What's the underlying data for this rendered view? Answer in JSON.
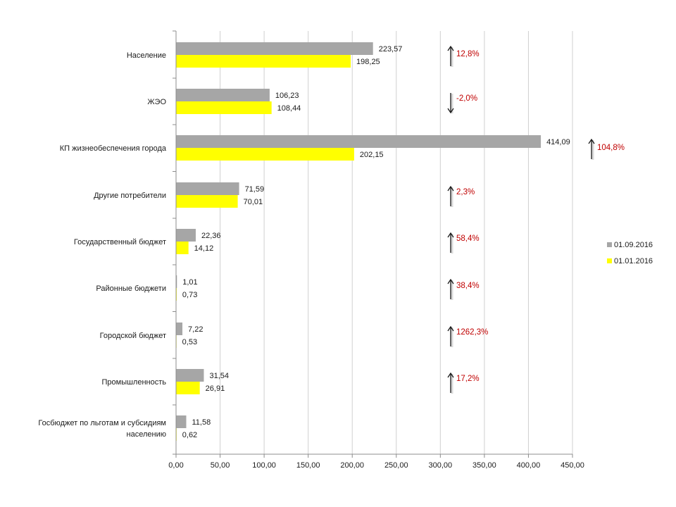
{
  "chart_data": {
    "type": "bar",
    "orientation": "horizontal",
    "categories": [
      "Население",
      "ЖЭО",
      "КП жизнеобеспечения  города",
      "Другие потребители",
      "Государственный бюджет",
      "Районные бюджети",
      "Городской бюджет",
      "Промышленность",
      "Госбюджет по льготам и субсидиям населению"
    ],
    "category_label_lines": [
      [
        "Население"
      ],
      [
        "ЖЭО"
      ],
      [
        "КП жизнеобеспечения  города"
      ],
      [
        "Другие потребители"
      ],
      [
        "Государственный бюджет"
      ],
      [
        "Районные бюджети"
      ],
      [
        "Городской бюджет"
      ],
      [
        "Промышленность"
      ],
      [
        "Госбюджет по льготам и субсидиям",
        "населению"
      ]
    ],
    "series": [
      {
        "name": "01.09.2016",
        "color": "#a6a6a6",
        "values": [
          223.57,
          106.23,
          414.09,
          71.59,
          22.36,
          1.01,
          7.22,
          31.54,
          11.58
        ],
        "labels": [
          "223,57",
          "106,23",
          "414,09",
          "71,59",
          "22,36",
          "1,01",
          "7,22",
          "31,54",
          "11,58"
        ]
      },
      {
        "name": "01.01.2016",
        "color": "#ffff00",
        "values": [
          198.25,
          108.44,
          202.15,
          70.01,
          14.12,
          0.73,
          0.53,
          26.91,
          0.62
        ],
        "labels": [
          "198,25",
          "108,44",
          "202,15",
          "70,01",
          "14,12",
          "0,73",
          "0,53",
          "26,91",
          "0,62"
        ]
      }
    ],
    "changes": [
      {
        "label": "12,8%",
        "direction": "up"
      },
      {
        "label": "-2,0%",
        "direction": "down"
      },
      {
        "label": "104,8%",
        "direction": "up"
      },
      {
        "label": "2,3%",
        "direction": "up"
      },
      {
        "label": "58,4%",
        "direction": "up"
      },
      {
        "label": "38,4%",
        "direction": "up"
      },
      {
        "label": "1262,3%",
        "direction": "up"
      },
      {
        "label": "17,2%",
        "direction": "up"
      },
      {
        "label": "",
        "direction": "none"
      }
    ],
    "xlim": [
      0,
      450
    ],
    "ticks": [
      0,
      50,
      100,
      150,
      200,
      250,
      300,
      350,
      400,
      450
    ],
    "tick_labels": [
      "0,00",
      "50,00",
      "100,00",
      "150,00",
      "200,00",
      "250,00",
      "300,00",
      "350,00",
      "400,00",
      "450,00"
    ],
    "grid": "vertical",
    "legend_position": "right",
    "title": "",
    "xlabel": "",
    "ylabel": ""
  }
}
